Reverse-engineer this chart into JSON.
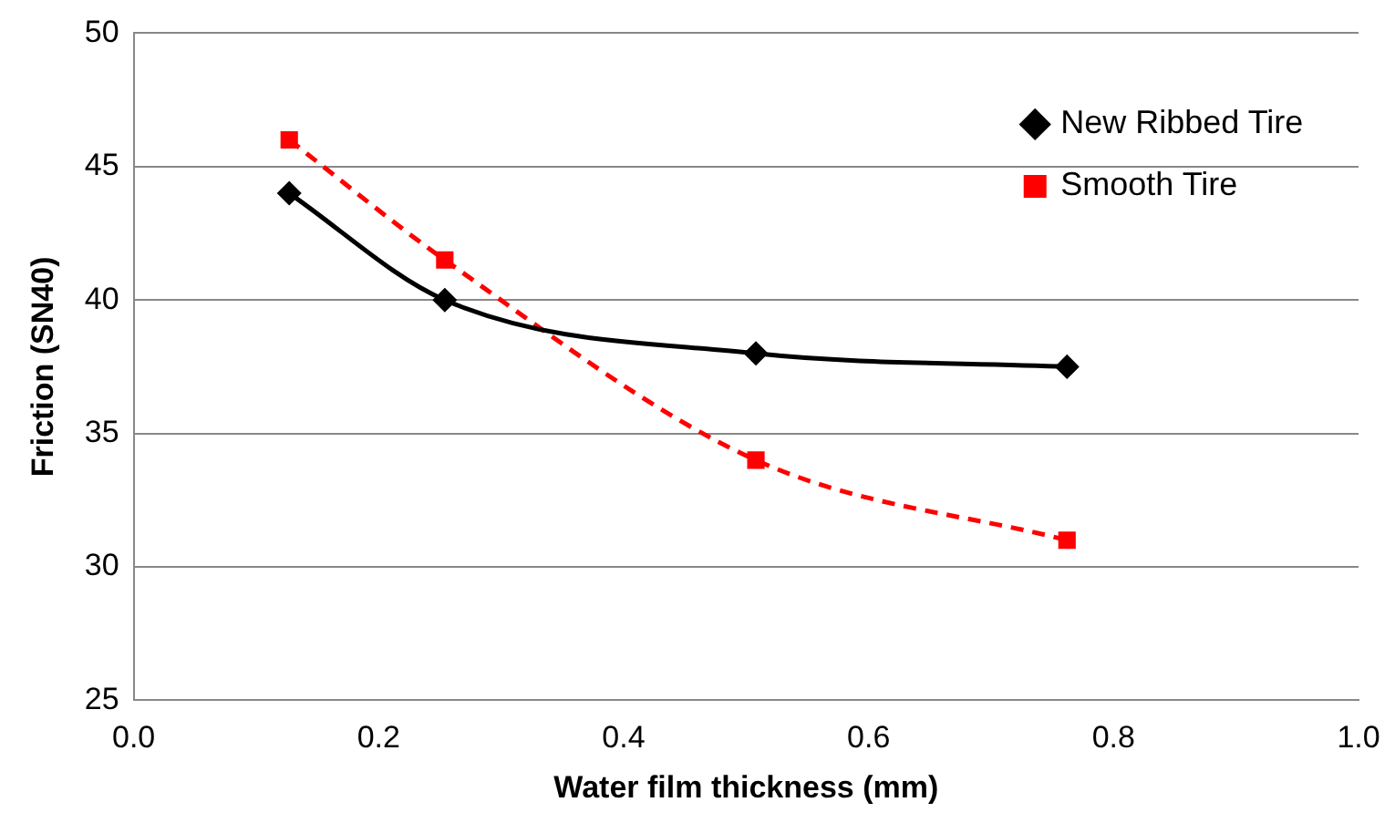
{
  "chart_data": {
    "type": "line",
    "xlabel": "Water film thickness (mm)",
    "ylabel": "Friction (SN40)",
    "x": [
      0.127,
      0.254,
      0.508,
      0.762
    ],
    "series": [
      {
        "name": "New Ribbed Tire",
        "color": "#000000",
        "values": [
          44,
          40,
          38,
          37.5
        ],
        "marker": "diamond",
        "line_style": "solid"
      },
      {
        "name": "Smooth Tire",
        "color": "#ff0000",
        "values": [
          46,
          41.5,
          34,
          31
        ],
        "marker": "square",
        "line_style": "dashed"
      }
    ],
    "xlim": [
      0,
      1
    ],
    "xticks": [
      {
        "value": 0,
        "label": "0.0"
      },
      {
        "value": 0.2,
        "label": "0.2"
      },
      {
        "value": 0.4,
        "label": "0.4"
      },
      {
        "value": 0.6,
        "label": "0.6"
      },
      {
        "value": 0.8,
        "label": "0.8"
      },
      {
        "value": 1,
        "label": "1.0"
      }
    ],
    "ylim": [
      25,
      50
    ],
    "yticks": [
      25,
      30,
      35,
      40,
      45,
      50
    ],
    "grid": "y",
    "legend": "top right"
  }
}
